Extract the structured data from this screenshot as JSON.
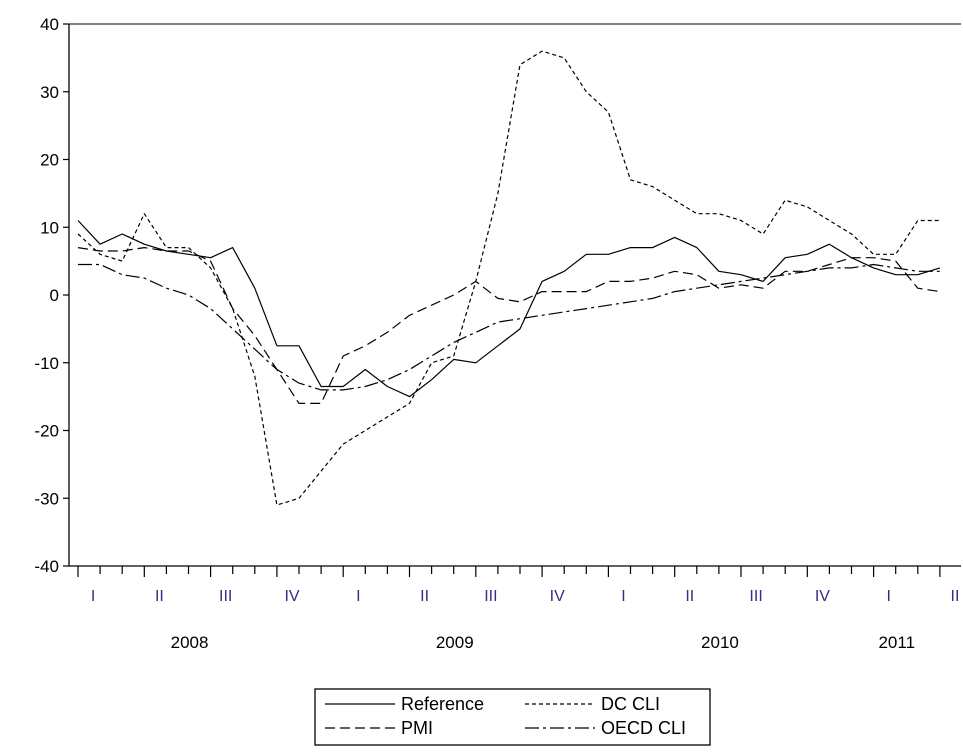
{
  "chart_data": {
    "type": "line",
    "title": "",
    "xlabel": "",
    "ylabel": "",
    "ylim": [
      -40,
      40
    ],
    "yticks": [
      40,
      30,
      20,
      10,
      0,
      -10,
      -20,
      -30,
      -40
    ],
    "ytick_labels": [
      "40",
      "30",
      "20",
      "10",
      "0",
      "-10",
      "-20",
      "-30",
      "-40"
    ],
    "x_start": "2008-01",
    "x_frequency": "monthly",
    "quarter_labels": [
      "I",
      "II",
      "III",
      "IV",
      "I",
      "II",
      "III",
      "IV",
      "I",
      "II",
      "III",
      "IV",
      "I",
      "II"
    ],
    "years": [
      "2008",
      "2009",
      "2010",
      "2011"
    ],
    "grid": false,
    "legend": {
      "position": "bottom-center",
      "entries": [
        "Reference",
        "DC CLI",
        "PMI",
        "OECD CLI"
      ]
    },
    "series": [
      {
        "name": "Reference",
        "style": "solid",
        "values": [
          11,
          7.5,
          9,
          7.5,
          6.5,
          6,
          5.5,
          7,
          1,
          -7.5,
          -7.5,
          -13.5,
          -13.5,
          -11,
          -13.5,
          -15,
          -12.5,
          -9.5,
          -10,
          -7.5,
          -5,
          2,
          3.5,
          6,
          6,
          7,
          7,
          8.5,
          7,
          3.5,
          3,
          2,
          5.5,
          6,
          7.5,
          5.5,
          4,
          3,
          3,
          4
        ]
      },
      {
        "name": "DC CLI",
        "style": "short-dash",
        "values": [
          9,
          6,
          5,
          12,
          7,
          7,
          4,
          -2,
          -12,
          -31,
          -30,
          -26,
          -22,
          -20,
          -18,
          -16,
          -10,
          -9,
          2,
          15,
          34,
          36,
          35,
          30,
          27,
          17,
          16,
          14,
          12,
          12,
          11,
          9,
          14,
          13,
          11,
          9,
          6,
          6,
          11,
          11
        ]
      },
      {
        "name": "PMI",
        "style": "long-dash",
        "values": [
          7,
          6.5,
          6.5,
          7,
          6.5,
          6.5,
          5,
          -2,
          -6,
          -11,
          -16,
          -16,
          -9,
          -7.5,
          -5.5,
          -3,
          -1.5,
          0,
          2,
          -0.5,
          -1,
          0.5,
          0.5,
          0.5,
          2,
          2,
          2.5,
          3.5,
          3,
          1,
          1.5,
          1,
          3.5,
          3.5,
          4.5,
          5.5,
          5.5,
          5,
          1,
          0.5
        ]
      },
      {
        "name": "OECD CLI",
        "style": "dash-dot",
        "values": [
          4.5,
          4.5,
          3,
          2.5,
          1,
          0,
          -2,
          -5,
          -8,
          -11,
          -13,
          -14,
          -14,
          -13.5,
          -12.5,
          -11,
          -9,
          -7,
          -5.5,
          -4,
          -3.5,
          -3,
          -2.5,
          -2,
          -1.5,
          -1,
          -0.5,
          0.5,
          1,
          1.5,
          2,
          2.5,
          3,
          3.5,
          4,
          4,
          4.5,
          4,
          3.5,
          3.5
        ]
      }
    ]
  }
}
